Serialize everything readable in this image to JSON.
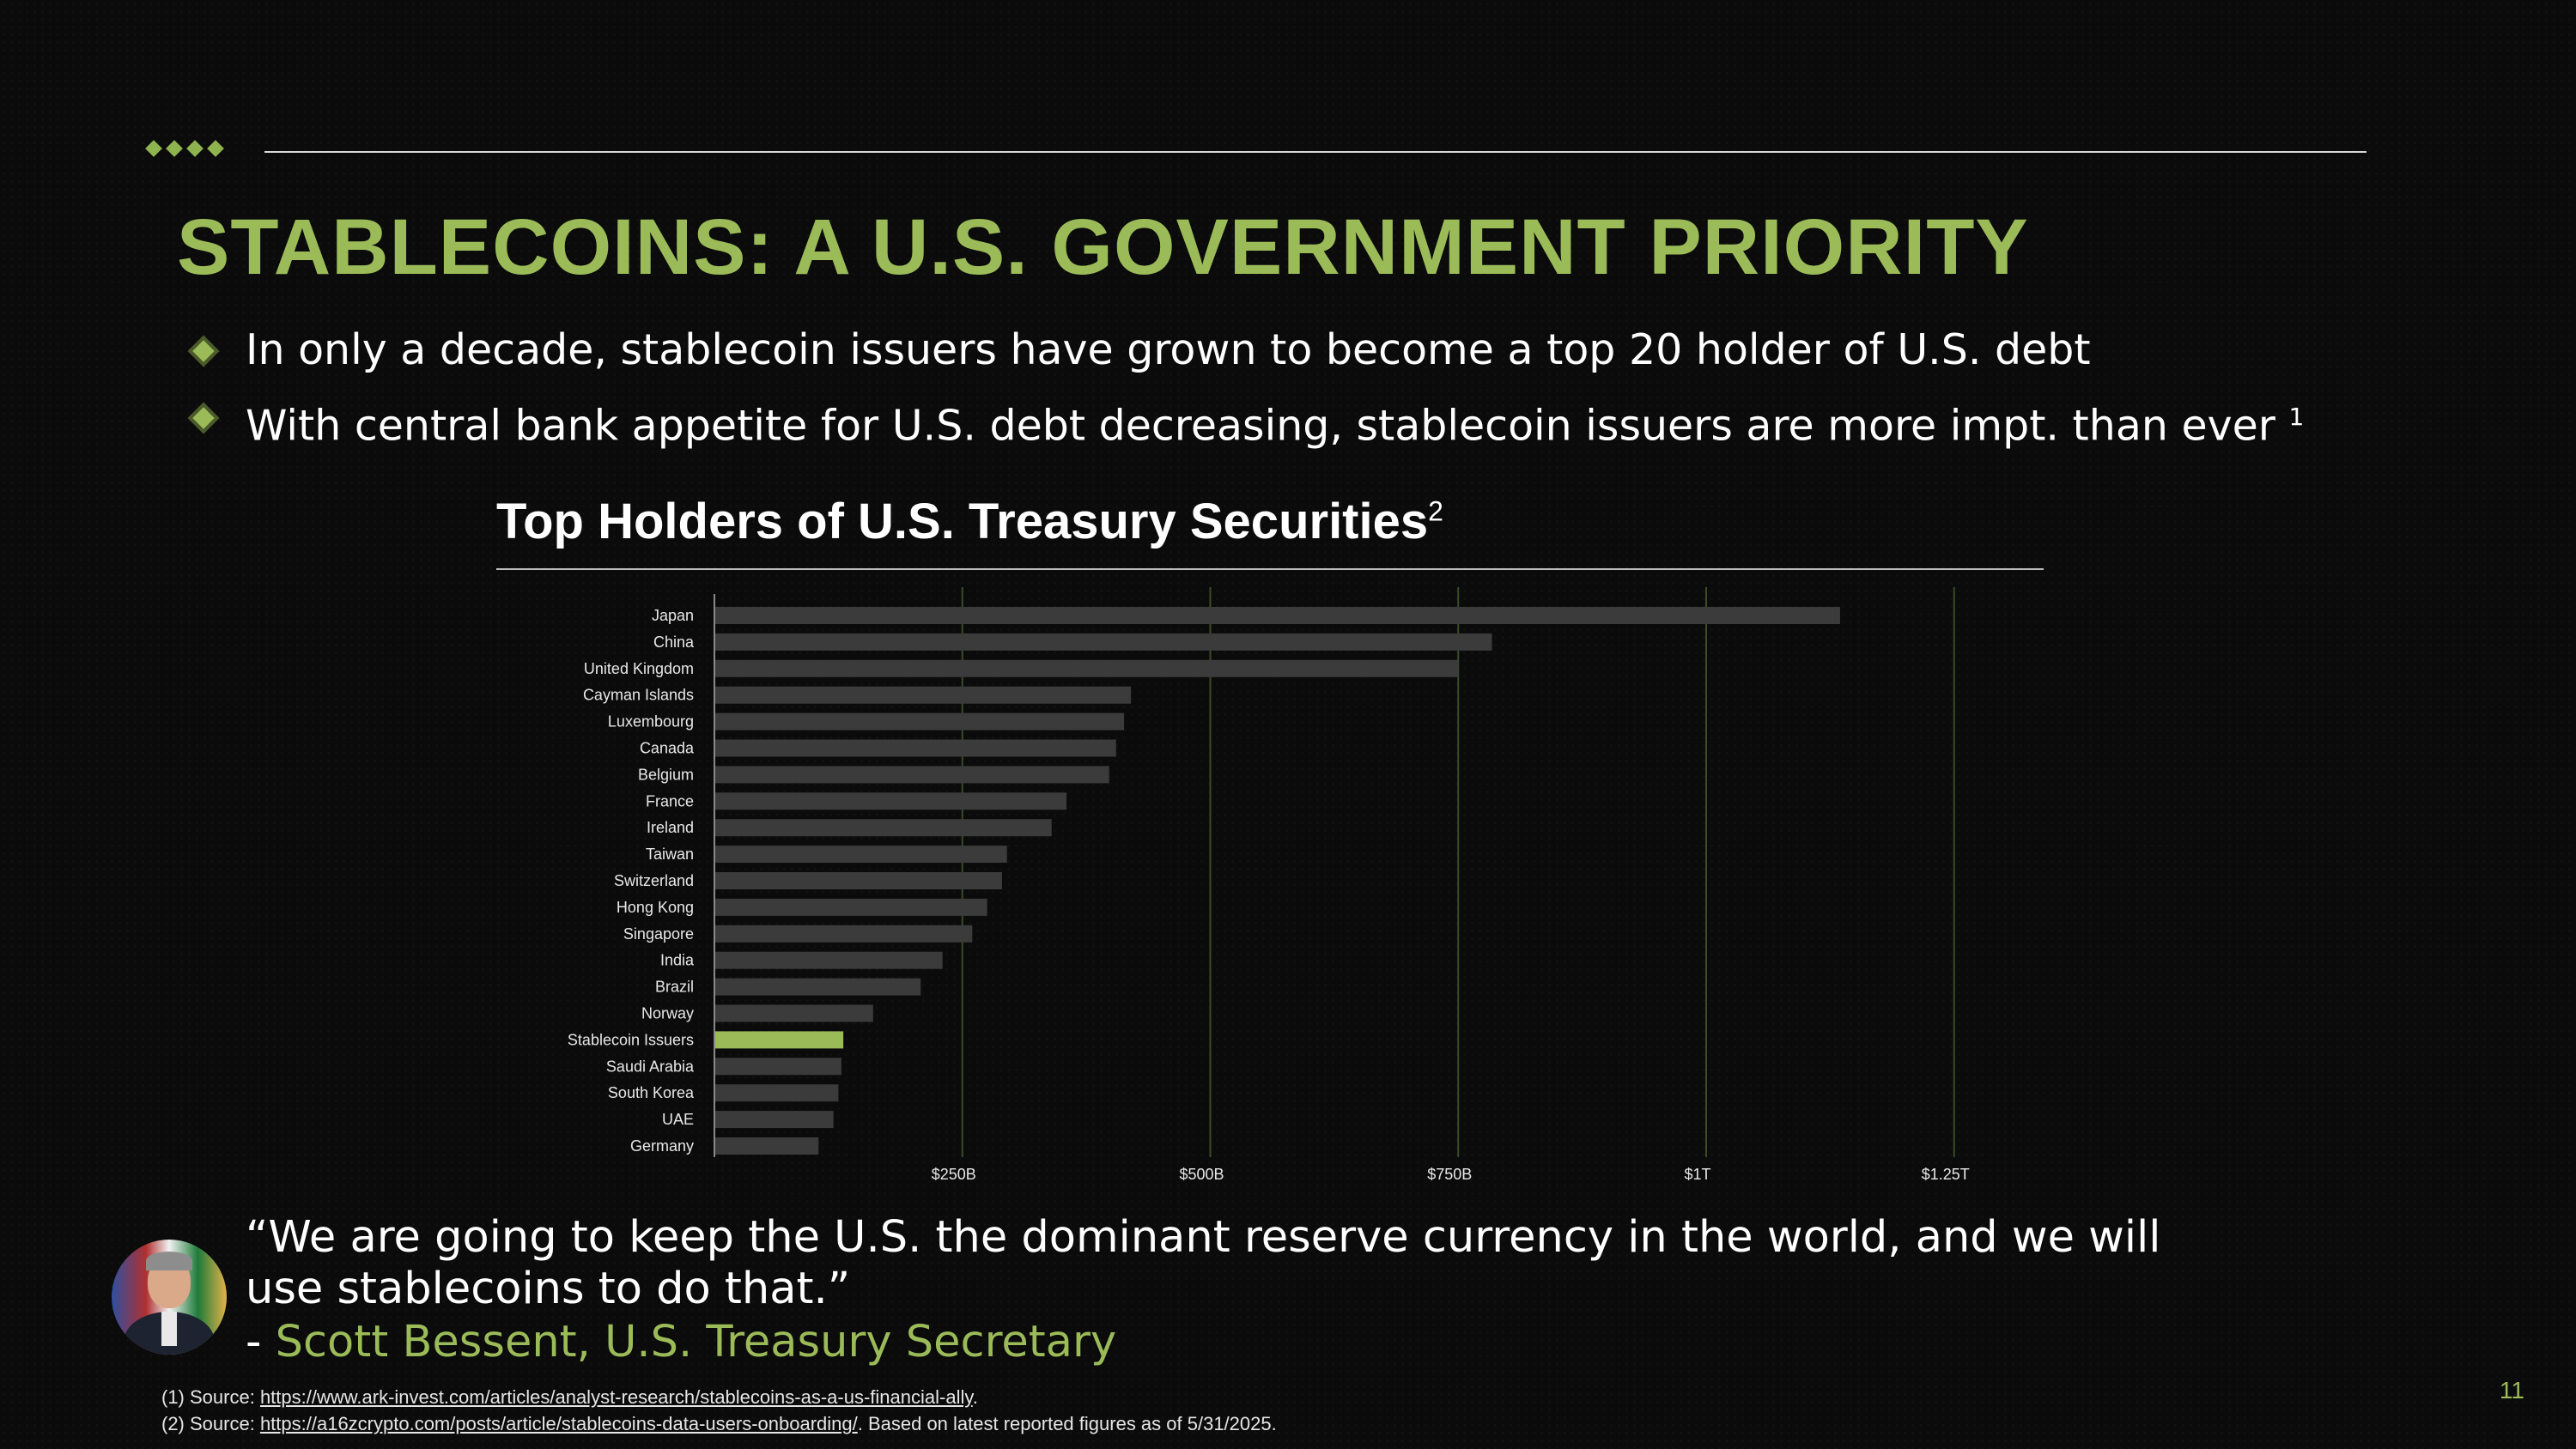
{
  "slide": {
    "title": "STABLECOINS: A U.S. GOVERNMENT PRIORITY",
    "bullets": [
      {
        "text": "In only a decade, stablecoin issuers have grown to become a top 20 holder of U.S. debt",
        "sup": ""
      },
      {
        "text": "With central bank appetite for U.S. debt decreasing, stablecoin issuers are more impt. than ever ",
        "sup": "1"
      }
    ],
    "quote": {
      "text": "“We are going to keep the U.S. the dominant reserve currency in the world, and we will use stablecoins to do that.”",
      "dash": "- ",
      "attribution": "Scott Bessent, U.S. Treasury Secretary"
    },
    "footnotes": [
      {
        "prefix": "(1) Source: ",
        "link": "https://www.ark-invest.com/articles/analyst-research/stablecoins-as-a-us-financial-ally",
        "suffix": "."
      },
      {
        "prefix": "(2) Source:  ",
        "link": "https://a16zcrypto.com/posts/article/stablecoins-data-users-onboarding/",
        "suffix": ". Based on latest reported figures as of 5/31/2025."
      }
    ],
    "page_number": "11"
  },
  "chart_data": {
    "type": "bar",
    "orientation": "horizontal",
    "title": "Top Holders of U.S. Treasury Securities",
    "title_sup": "2",
    "xlabel": "",
    "ylabel": "",
    "categories": [
      "Japan",
      "China",
      "United Kingdom",
      "Cayman Islands",
      "Luxembourg",
      "Canada",
      "Belgium",
      "France",
      "Ireland",
      "Taiwan",
      "Switzerland",
      "Hong Kong",
      "Singapore",
      "India",
      "Brazil",
      "Norway",
      "Stablecoin Issuers",
      "Saudi Arabia",
      "South Korea",
      "UAE",
      "Germany"
    ],
    "values": [
      1135,
      784,
      750,
      420,
      413,
      405,
      398,
      355,
      340,
      295,
      290,
      275,
      260,
      230,
      208,
      160,
      130,
      128,
      125,
      120,
      105
    ],
    "highlight": "Stablecoin Issuers",
    "unit": "billion USD",
    "xlim": [
      0,
      1375
    ],
    "xticks": [
      {
        "value": 250,
        "label": "$250B"
      },
      {
        "value": 500,
        "label": "$500B"
      },
      {
        "value": 750,
        "label": "$750B"
      },
      {
        "value": 1000,
        "label": "$1T"
      },
      {
        "value": 1250,
        "label": "$1.25T"
      }
    ],
    "grid": true,
    "legend": "none",
    "colors": {
      "bar": "#3b3b3b",
      "highlight": "#9bbb59",
      "grid": "#3d4a28",
      "axis": "#8a8a8a",
      "label": "#e8e8e8"
    }
  }
}
